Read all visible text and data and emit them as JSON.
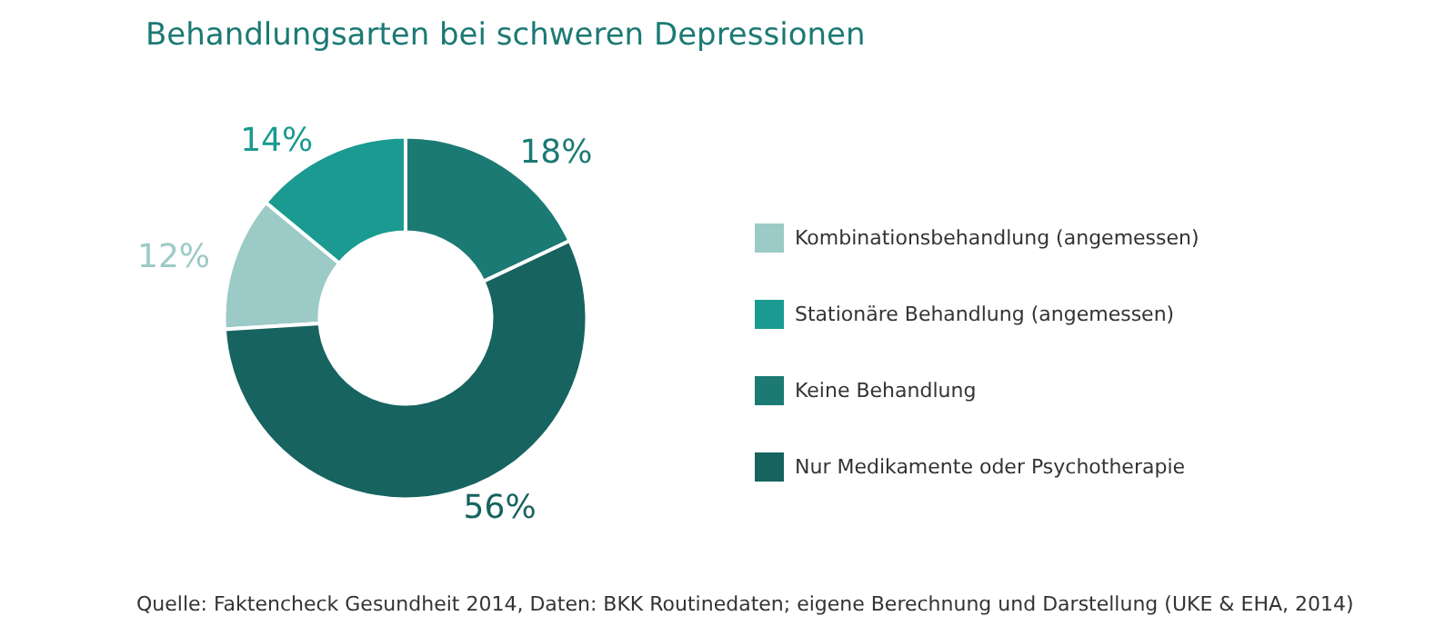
{
  "chart_data": {
    "type": "donut",
    "title": "Behandlungsarten bei schweren Depressionen",
    "categories": [
      "Kombinationsbehandlung (angemessen)",
      "Stationäre Behandlung (angemessen)",
      "Keine Behandlung",
      "Nur Medikamente oder Psychotherapie"
    ],
    "values": [
      12,
      14,
      18,
      56
    ],
    "value_labels": [
      "12%",
      "14%",
      "18%",
      "56%"
    ],
    "colors": [
      "#9ccac6",
      "#1a9a90",
      "#1b7a73",
      "#17635f"
    ],
    "legend": "right",
    "annotations": [
      "Quelle: Faktencheck Gesundheit 2014, Daten: BKK Routinedaten; eigene Berechnung und Darstellung (UKE & EHA, 2014)"
    ]
  }
}
